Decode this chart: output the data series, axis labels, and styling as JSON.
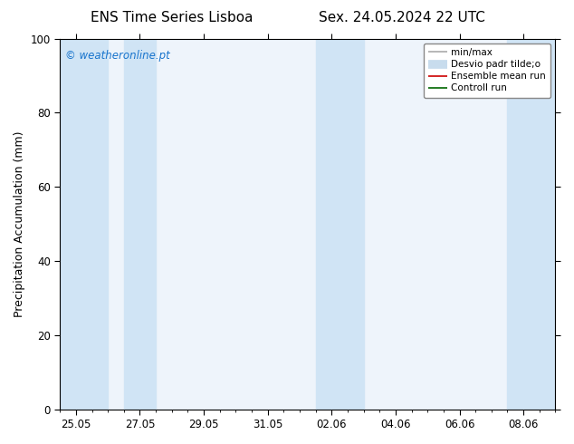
{
  "title_left": "ENS Time Series Lisboa",
  "title_right": "Sex. 24.05.2024 22 UTC",
  "ylabel": "Precipitation Accumulation (mm)",
  "xlabel": "",
  "ylim": [
    0,
    100
  ],
  "yticks": [
    0,
    20,
    40,
    60,
    80,
    100
  ],
  "x_tick_labels": [
    "25.05",
    "27.05",
    "29.05",
    "31.05",
    "02.06",
    "04.06",
    "06.06",
    "08.06"
  ],
  "x_tick_positions": [
    0,
    2,
    4,
    6,
    8,
    10,
    12,
    14
  ],
  "x_min": -0.5,
  "x_max": 15.0,
  "watermark_text": "© weatheronline.pt",
  "watermark_color": "#1874CD",
  "bg_color": "#ffffff",
  "plot_bg_color": "#eef4fb",
  "shaded_band_color": "#d0e4f5",
  "shaded_regions": [
    {
      "x_start": -0.5,
      "x_end": 1.0
    },
    {
      "x_start": 1.5,
      "x_end": 2.5
    },
    {
      "x_start": 7.5,
      "x_end": 9.0
    },
    {
      "x_start": 13.5,
      "x_end": 15.2
    }
  ],
  "legend_entries": [
    {
      "label": "min/max",
      "color": "#aaaaaa",
      "lw": 1.2,
      "style": "solid"
    },
    {
      "label": "Desvio padr tilde;o",
      "color": "#c8dced",
      "lw": 7,
      "style": "solid"
    },
    {
      "label": "Ensemble mean run",
      "color": "#cc0000",
      "lw": 1.2,
      "style": "solid"
    },
    {
      "label": "Controll run",
      "color": "#006600",
      "lw": 1.2,
      "style": "solid"
    }
  ],
  "title_fontsize": 11,
  "axis_fontsize": 9,
  "tick_fontsize": 8.5
}
